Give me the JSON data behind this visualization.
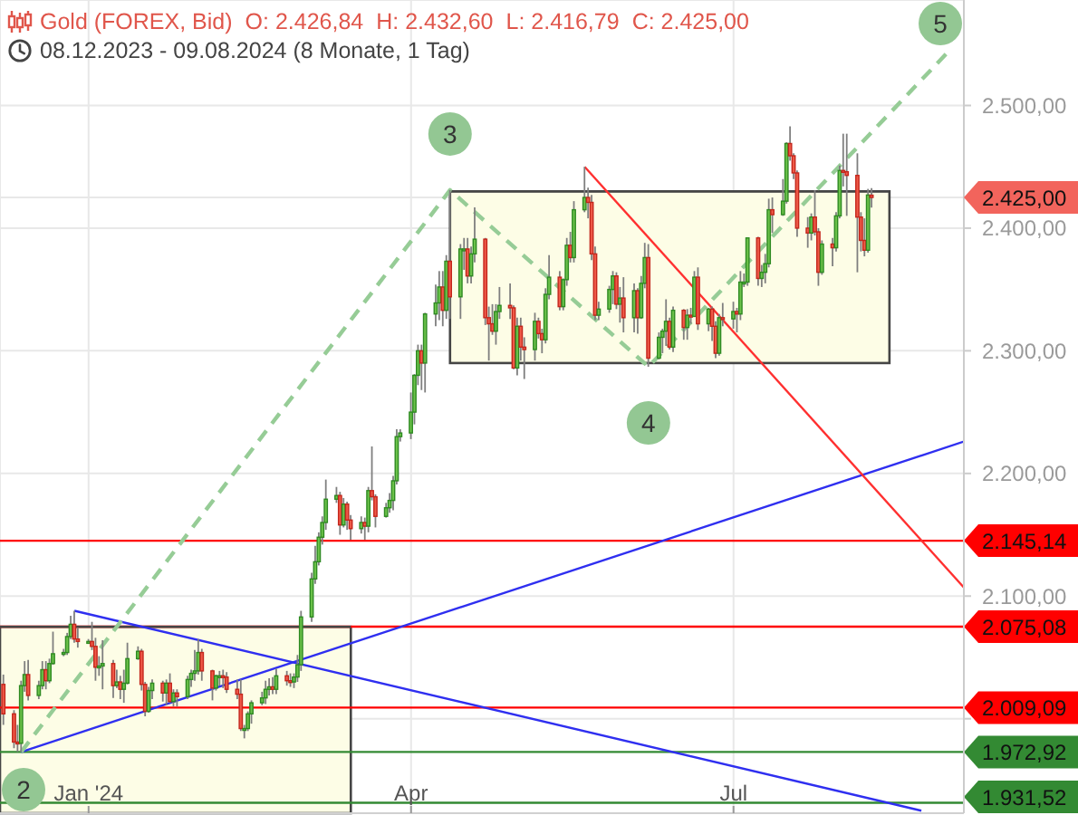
{
  "chart_data": {
    "type": "candlestick",
    "title": "Gold (FOREX, Bid)",
    "subtitle": "08.12.2023 - 09.08.2024 (8 Monate, 1 Tag)",
    "x": [
      "2023-12-08",
      "2023-12-11",
      "2023-12-12",
      "2023-12-13",
      "2023-12-14",
      "2023-12-15",
      "2023-12-18",
      "2023-12-19",
      "2023-12-20",
      "2023-12-21",
      "2023-12-22",
      "2023-12-25",
      "2023-12-26",
      "2023-12-27",
      "2023-12-28",
      "2023-12-29",
      "2024-01-01",
      "2024-01-02",
      "2024-01-03",
      "2024-01-04",
      "2024-01-05",
      "2024-01-08",
      "2024-01-09",
      "2024-01-10",
      "2024-01-11",
      "2024-01-12",
      "2024-01-15",
      "2024-01-16",
      "2024-01-17",
      "2024-01-18",
      "2024-01-19",
      "2024-01-22",
      "2024-01-23",
      "2024-01-24",
      "2024-01-25",
      "2024-01-26",
      "2024-01-29",
      "2024-01-30",
      "2024-01-31",
      "2024-02-01",
      "2024-02-02",
      "2024-02-05",
      "2024-02-06",
      "2024-02-07",
      "2024-02-08",
      "2024-02-09",
      "2024-02-12",
      "2024-02-13",
      "2024-02-14",
      "2024-02-15",
      "2024-02-16",
      "2024-02-19",
      "2024-02-20",
      "2024-02-21",
      "2024-02-22",
      "2024-02-23",
      "2024-02-26",
      "2024-02-27",
      "2024-02-28",
      "2024-02-29",
      "2024-03-01",
      "2024-03-04",
      "2024-03-05",
      "2024-03-06",
      "2024-03-07",
      "2024-03-08",
      "2024-03-11",
      "2024-03-12",
      "2024-03-13",
      "2024-03-14",
      "2024-03-15",
      "2024-03-18",
      "2024-03-19",
      "2024-03-20",
      "2024-03-21",
      "2024-03-22",
      "2024-03-25",
      "2024-03-26",
      "2024-03-27",
      "2024-03-28",
      "2024-03-29",
      "2024-04-01",
      "2024-04-02",
      "2024-04-03",
      "2024-04-04",
      "2024-04-05",
      "2024-04-08",
      "2024-04-09",
      "2024-04-10",
      "2024-04-11",
      "2024-04-12",
      "2024-04-15",
      "2024-04-16",
      "2024-04-17",
      "2024-04-18",
      "2024-04-19",
      "2024-04-22",
      "2024-04-23",
      "2024-04-24",
      "2024-04-25",
      "2024-04-26",
      "2024-04-29",
      "2024-04-30",
      "2024-05-01",
      "2024-05-02",
      "2024-05-03",
      "2024-05-06",
      "2024-05-07",
      "2024-05-08",
      "2024-05-09",
      "2024-05-10",
      "2024-05-13",
      "2024-05-14",
      "2024-05-15",
      "2024-05-16",
      "2024-05-17",
      "2024-05-20",
      "2024-05-21",
      "2024-05-22",
      "2024-05-23",
      "2024-05-24",
      "2024-05-27",
      "2024-05-28",
      "2024-05-29",
      "2024-05-30",
      "2024-05-31",
      "2024-06-03",
      "2024-06-04",
      "2024-06-05",
      "2024-06-06",
      "2024-06-07",
      "2024-06-10",
      "2024-06-11",
      "2024-06-12",
      "2024-06-13",
      "2024-06-14",
      "2024-06-17",
      "2024-06-18",
      "2024-06-19",
      "2024-06-20",
      "2024-06-21",
      "2024-06-24",
      "2024-06-25",
      "2024-06-26",
      "2024-06-27",
      "2024-06-28",
      "2024-07-01",
      "2024-07-02",
      "2024-07-03",
      "2024-07-04",
      "2024-07-05",
      "2024-07-08",
      "2024-07-09",
      "2024-07-10",
      "2024-07-11",
      "2024-07-12",
      "2024-07-15",
      "2024-07-16",
      "2024-07-17",
      "2024-07-18",
      "2024-07-19",
      "2024-07-22",
      "2024-07-23",
      "2024-07-24",
      "2024-07-25",
      "2024-07-26",
      "2024-07-29",
      "2024-07-30",
      "2024-07-31",
      "2024-08-01",
      "2024-08-02",
      "2024-08-05",
      "2024-08-06",
      "2024-08-07",
      "2024-08-08",
      "2024-08-09"
    ],
    "ohlc": [
      [
        2028,
        2036,
        1995,
        2004
      ],
      [
        2004,
        2007,
        1976,
        1981
      ],
      [
        1981,
        1995,
        1973,
        1980
      ],
      [
        1980,
        2031,
        1973,
        2027
      ],
      [
        2027,
        2047,
        2022,
        2036
      ],
      [
        2036,
        2048,
        2015,
        2019
      ],
      [
        2019,
        2031,
        2016,
        2027
      ],
      [
        2027,
        2047,
        2024,
        2040
      ],
      [
        2040,
        2047,
        2024,
        2031
      ],
      [
        2031,
        2049,
        2029,
        2045
      ],
      [
        2045,
        2071,
        2044,
        2053
      ],
      [
        2053,
        2057,
        2051,
        2054
      ],
      [
        2054,
        2070,
        2052,
        2067
      ],
      [
        2067,
        2084,
        2065,
        2077
      ],
      [
        2077,
        2088,
        2062,
        2065
      ],
      [
        2065,
        2074,
        2058,
        2063
      ],
      [
        2063,
        2065,
        2061,
        2063
      ],
      [
        2063,
        2079,
        2056,
        2059
      ],
      [
        2059,
        2066,
        2031,
        2042
      ],
      [
        2042,
        2051,
        2035,
        2043
      ],
      [
        2043,
        2064,
        2024,
        2045
      ],
      [
        2045,
        2048,
        2017,
        2027
      ],
      [
        2027,
        2040,
        2025,
        2030
      ],
      [
        2030,
        2035,
        2016,
        2024
      ],
      [
        2024,
        2040,
        2013,
        2029
      ],
      [
        2029,
        2062,
        2028,
        2049
      ],
      [
        2049,
        2059,
        2048,
        2055
      ],
      [
        2055,
        2057,
        2023,
        2028
      ],
      [
        2028,
        2030,
        2002,
        2006
      ],
      [
        2006,
        2026,
        2005,
        2023
      ],
      [
        2023,
        2032,
        2016,
        2029
      ],
      [
        2029,
        2031,
        2014,
        2021
      ],
      [
        2021,
        2032,
        2011,
        2029
      ],
      [
        2029,
        2037,
        2013,
        2014
      ],
      [
        2014,
        2024,
        2010,
        2021
      ],
      [
        2021,
        2024,
        2010,
        2018
      ],
      [
        2018,
        2035,
        2016,
        2032
      ],
      [
        2032,
        2040,
        2026,
        2037
      ],
      [
        2037,
        2056,
        2031,
        2039
      ],
      [
        2039,
        2065,
        2036,
        2054
      ],
      [
        2054,
        2057,
        2031,
        2039
      ],
      [
        2039,
        2040,
        2015,
        2025
      ],
      [
        2025,
        2036,
        2023,
        2035
      ],
      [
        2035,
        2039,
        2027,
        2035
      ],
      [
        2035,
        2040,
        2025,
        2034
      ],
      [
        2034,
        2038,
        2021,
        2024
      ],
      [
        2024,
        2032,
        2016,
        2020
      ],
      [
        2020,
        2032,
        1990,
        1992
      ],
      [
        1992,
        1995,
        1984,
        1992
      ],
      [
        1992,
        2006,
        1990,
        2004
      ],
      [
        2004,
        2015,
        1996,
        2013
      ],
      [
        2013,
        2022,
        2011,
        2017
      ],
      [
        2017,
        2031,
        2012,
        2024
      ],
      [
        2024,
        2033,
        2019,
        2026
      ],
      [
        2026,
        2034,
        2020,
        2024
      ],
      [
        2024,
        2041,
        2020,
        2035
      ],
      [
        2035,
        2039,
        2027,
        2031
      ],
      [
        2031,
        2037,
        2026,
        2030
      ],
      [
        2030,
        2037,
        2025,
        2034
      ],
      [
        2034,
        2052,
        2030,
        2044
      ],
      [
        2044,
        2088,
        2039,
        2083
      ],
      [
        2083,
        2119,
        2079,
        2114
      ],
      [
        2114,
        2141,
        2110,
        2128
      ],
      [
        2128,
        2152,
        2125,
        2148
      ],
      [
        2148,
        2165,
        2142,
        2160
      ],
      [
        2160,
        2195,
        2154,
        2179
      ],
      [
        2179,
        2189,
        2176,
        2182
      ],
      [
        2182,
        2185,
        2150,
        2158
      ],
      [
        2158,
        2180,
        2156,
        2175
      ],
      [
        2175,
        2177,
        2154,
        2162
      ],
      [
        2162,
        2166,
        2146,
        2155
      ],
      [
        2155,
        2165,
        2151,
        2160
      ],
      [
        2160,
        2164,
        2146,
        2157
      ],
      [
        2157,
        2189,
        2152,
        2186
      ],
      [
        2186,
        2222,
        2178,
        2181
      ],
      [
        2181,
        2183,
        2156,
        2165
      ],
      [
        2165,
        2176,
        2164,
        2172
      ],
      [
        2172,
        2184,
        2168,
        2178
      ],
      [
        2178,
        2198,
        2170,
        2194
      ],
      [
        2194,
        2236,
        2191,
        2230
      ],
      [
        2230,
        2236,
        2226,
        2233
      ],
      [
        2233,
        2266,
        2228,
        2250
      ],
      [
        2250,
        2281,
        2240,
        2280
      ],
      [
        2280,
        2305,
        2272,
        2300
      ],
      [
        2300,
        2305,
        2268,
        2290
      ],
      [
        2290,
        2331,
        2266,
        2330
      ],
      [
        2330,
        2354,
        2320,
        2339
      ],
      [
        2339,
        2365,
        2325,
        2352
      ],
      [
        2352,
        2365,
        2320,
        2333
      ],
      [
        2333,
        2378,
        2326,
        2373
      ],
      [
        2373,
        2431,
        2326,
        2344
      ],
      [
        2344,
        2387,
        2326,
        2383
      ],
      [
        2383,
        2392,
        2366,
        2383
      ],
      [
        2383,
        2392,
        2355,
        2361
      ],
      [
        2361,
        2385,
        2355,
        2379
      ],
      [
        2379,
        2417,
        2372,
        2391
      ],
      [
        2391,
        2392,
        2321,
        2327
      ],
      [
        2327,
        2336,
        2292,
        2322
      ],
      [
        2322,
        2338,
        2313,
        2316
      ],
      [
        2316,
        2338,
        2305,
        2332
      ],
      [
        2332,
        2352,
        2326,
        2337
      ],
      [
        2337,
        2355,
        2326,
        2335
      ],
      [
        2335,
        2337,
        2285,
        2286
      ],
      [
        2286,
        2327,
        2280,
        2320
      ],
      [
        2320,
        2327,
        2292,
        2303
      ],
      [
        2303,
        2311,
        2277,
        2301
      ],
      [
        2301,
        2331,
        2292,
        2324
      ],
      [
        2324,
        2327,
        2310,
        2314
      ],
      [
        2314,
        2318,
        2298,
        2309
      ],
      [
        2309,
        2351,
        2306,
        2346
      ],
      [
        2346,
        2378,
        2342,
        2360
      ],
      [
        2360,
        2365,
        2333,
        2336
      ],
      [
        2336,
        2359,
        2333,
        2358
      ],
      [
        2358,
        2392,
        2353,
        2386
      ],
      [
        2386,
        2397,
        2372,
        2376
      ],
      [
        2376,
        2422,
        2372,
        2415
      ],
      [
        2415,
        2450,
        2413,
        2425
      ],
      [
        2425,
        2433,
        2408,
        2421
      ],
      [
        2421,
        2427,
        2374,
        2379
      ],
      [
        2379,
        2385,
        2325,
        2329
      ],
      [
        2329,
        2340,
        2325,
        2334
      ],
      [
        2334,
        2353,
        2331,
        2350
      ],
      [
        2350,
        2365,
        2338,
        2361
      ],
      [
        2361,
        2364,
        2334,
        2338
      ],
      [
        2338,
        2352,
        2323,
        2343
      ],
      [
        2343,
        2360,
        2315,
        2327
      ],
      [
        2327,
        2355,
        2315,
        2349
      ],
      [
        2349,
        2351,
        2314,
        2327
      ],
      [
        2327,
        2361,
        2326,
        2355
      ],
      [
        2355,
        2388,
        2351,
        2376
      ],
      [
        2376,
        2387,
        2287,
        2294
      ],
      [
        2294,
        2315,
        2293,
        2311
      ],
      [
        2311,
        2318,
        2298,
        2316
      ],
      [
        2316,
        2342,
        2304,
        2324
      ],
      [
        2324,
        2327,
        2301,
        2303
      ],
      [
        2303,
        2336,
        2299,
        2333
      ],
      [
        2333,
        2334,
        2309,
        2319
      ],
      [
        2319,
        2334,
        2309,
        2329
      ],
      [
        2329,
        2335,
        2322,
        2328
      ],
      [
        2328,
        2365,
        2328,
        2360
      ],
      [
        2360,
        2368,
        2317,
        2322
      ],
      [
        2322,
        2335,
        2316,
        2334
      ],
      [
        2334,
        2336,
        2308,
        2320
      ],
      [
        2320,
        2324,
        2294,
        2298
      ],
      [
        2298,
        2330,
        2296,
        2327
      ],
      [
        2327,
        2339,
        2320,
        2326
      ],
      [
        2326,
        2340,
        2318,
        2332
      ],
      [
        2332,
        2335,
        2315,
        2330
      ],
      [
        2330,
        2365,
        2325,
        2356
      ],
      [
        2356,
        2363,
        2352,
        2356
      ],
      [
        2356,
        2392,
        2353,
        2392
      ],
      [
        2392,
        2393,
        2353,
        2359
      ],
      [
        2359,
        2370,
        2352,
        2364
      ],
      [
        2364,
        2379,
        2355,
        2371
      ],
      [
        2371,
        2424,
        2368,
        2415
      ],
      [
        2415,
        2425,
        2396,
        2411
      ],
      [
        2411,
        2440,
        2410,
        2422
      ],
      [
        2422,
        2470,
        2420,
        2469
      ],
      [
        2469,
        2483,
        2455,
        2459
      ],
      [
        2459,
        2461,
        2440,
        2445
      ],
      [
        2445,
        2447,
        2393,
        2400
      ],
      [
        2400,
        2409,
        2384,
        2396
      ],
      [
        2396,
        2412,
        2390,
        2409
      ],
      [
        2409,
        2431,
        2394,
        2397
      ],
      [
        2397,
        2400,
        2353,
        2364
      ],
      [
        2364,
        2390,
        2362,
        2387
      ],
      [
        2387,
        2392,
        2369,
        2384
      ],
      [
        2384,
        2413,
        2381,
        2410
      ],
      [
        2410,
        2451,
        2408,
        2447
      ],
      [
        2447,
        2477,
        2434,
        2446
      ],
      [
        2446,
        2477,
        2410,
        2443
      ],
      [
        2443,
        2461,
        2364,
        2409
      ],
      [
        2409,
        2413,
        2381,
        2390
      ],
      [
        2390,
        2408,
        2377,
        2382
      ],
      [
        2382,
        2432,
        2380,
        2427
      ],
      [
        2426.84,
        2432.6,
        2416.79,
        2425
      ]
    ],
    "series": [
      {
        "type": "line",
        "x": [
          "2023-12-07",
          "2024-03-15"
        ],
        "values": [
          2075,
          2075
        ],
        "lower": [
          1923,
          1923
        ],
        "upper": [
          2075,
          2075
        ],
        "color": "#454545"
      },
      {
        "type": "line",
        "x": [
          "2024-04-12",
          "2024-08-14"
        ],
        "values": [
          2430,
          2430
        ],
        "lower": [
          2290,
          2290
        ],
        "upper": [
          2430,
          2430
        ],
        "color": "#454545"
      },
      {
        "type": "line",
        "x": [
          "2023-12-13",
          "2024-09-04"
        ],
        "values": [
          1973,
          2226
        ],
        "color": "#2f2ff0"
      },
      {
        "type": "line",
        "x": [
          "2023-12-28",
          "2024-08-23"
        ],
        "values": [
          2088,
          1925
        ],
        "color": "#2f2ff0"
      },
      {
        "type": "line",
        "x": [
          "2024-05-20",
          "2024-09-04"
        ],
        "values": [
          2450,
          2107
        ],
        "color": "#ff3030"
      },
      {
        "type": "line",
        "line_style": "dashed",
        "x": [
          "2023-12-13",
          "2024-04-12",
          "2024-06-07",
          "2024-08-30"
        ],
        "values": [
          1973,
          2431,
          2287,
          2542
        ],
        "color": "#96cc96"
      }
    ],
    "ref_lines": [
      {
        "axis": "y",
        "value": 2145.14,
        "label": "2.145,14",
        "color": "#ff0000"
      },
      {
        "axis": "y",
        "value": 2075.08,
        "label": "2.075,08",
        "color": "#ff0000"
      },
      {
        "axis": "y",
        "value": 2009.09,
        "label": "2.009,09",
        "color": "#ff0000"
      },
      {
        "axis": "y",
        "value": 1972.92,
        "label": "1.972,92",
        "color": "#338a33"
      },
      {
        "axis": "y",
        "value": 1931.52,
        "label": "1.931,52",
        "color": "#338a33"
      }
    ],
    "annotations": [
      "O: 2.426,84",
      "H: 2.432,60",
      "L: 2.416,79",
      "C: 2.425,00",
      {
        "text": "2",
        "x": "2023-12-13",
        "y": 1973
      },
      {
        "text": "3",
        "x": "2024-04-12",
        "y": 2431
      },
      {
        "text": "4",
        "x": "2024-06-07",
        "y": 2287
      },
      {
        "text": "5",
        "x": "2024-08-30",
        "y": 2542
      }
    ],
    "xlim": [
      "2023-12-07",
      "2024-09-04"
    ],
    "xticks": [
      {
        "value": "2024-01-01",
        "label": "Jan '24"
      },
      {
        "value": "2024-04-01",
        "label": "Apr"
      },
      {
        "value": "2024-07-01",
        "label": "Jul"
      }
    ],
    "ylim": [
      1923,
      2586
    ],
    "yticks": [
      {
        "value": 2000,
        "label": null
      },
      {
        "value": 2100,
        "label": "2.100,00"
      },
      {
        "value": 2200,
        "label": "2.200,00"
      },
      {
        "value": 2300,
        "label": "2.300,00"
      },
      {
        "value": 2400,
        "label": "2.400,00"
      },
      {
        "value": 2425,
        "label": "2.425,00"
      },
      {
        "value": 2500,
        "label": "2.500,00"
      }
    ],
    "grid": true
  }
}
